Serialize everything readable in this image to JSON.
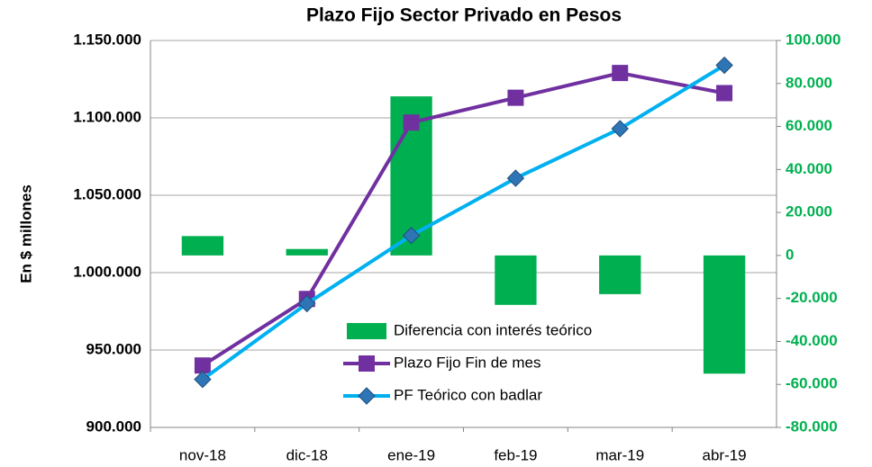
{
  "chart_data": {
    "type": "combo",
    "title": "Plazo Fijo Sector Privado en Pesos",
    "y_label": "En $ millones",
    "categories": [
      "nov-18",
      "dic-18",
      "ene-19",
      "feb-19",
      "mar-19",
      "abr-19"
    ],
    "ylim": [
      900000,
      1150000
    ],
    "yticks": [
      {
        "value": 900000,
        "label": "900.000"
      },
      {
        "value": 950000,
        "label": "950.000"
      },
      {
        "value": 1000000,
        "label": "1.000.000"
      },
      {
        "value": 1050000,
        "label": "1.050.000"
      },
      {
        "value": 1100000,
        "label": "1.100.000"
      },
      {
        "value": 1150000,
        "label": "1.150.000"
      }
    ],
    "y2lim": [
      -80000,
      100000
    ],
    "y2ticks": [
      {
        "value": -80000,
        "label": "-80.000"
      },
      {
        "value": -60000,
        "label": "-60.000"
      },
      {
        "value": -40000,
        "label": "-40.000"
      },
      {
        "value": -20000,
        "label": "-20.000"
      },
      0,
      {
        "value": 20000,
        "label": "20.000"
      },
      {
        "value": 40000,
        "label": "40.000"
      },
      {
        "value": 60000,
        "label": "60.000"
      },
      {
        "value": 80000,
        "label": "80.000"
      },
      {
        "value": 100000,
        "label": "100.000"
      }
    ],
    "y2_color": "#00b050",
    "grid": true,
    "series": [
      {
        "name": "Diferencia con interés teórico",
        "type": "bar",
        "axis": "y2",
        "color": "#00b050",
        "values": [
          9000,
          3000,
          74000,
          -23000,
          -18000,
          -55000
        ]
      },
      {
        "name": "Plazo Fijo Fin de mes",
        "type": "line",
        "marker": "square",
        "color": "#7030a0",
        "marker_color": "#7030a0",
        "values": [
          940000,
          983000,
          1097000,
          1113000,
          1129000,
          1116000
        ]
      },
      {
        "name": "PF Teórico con badlar",
        "type": "line",
        "marker": "diamond",
        "color": "#00b0f0",
        "marker_color": "#2e75b6",
        "values": [
          931000,
          980000,
          1024000,
          1061000,
          1093000,
          1134000
        ]
      }
    ]
  }
}
